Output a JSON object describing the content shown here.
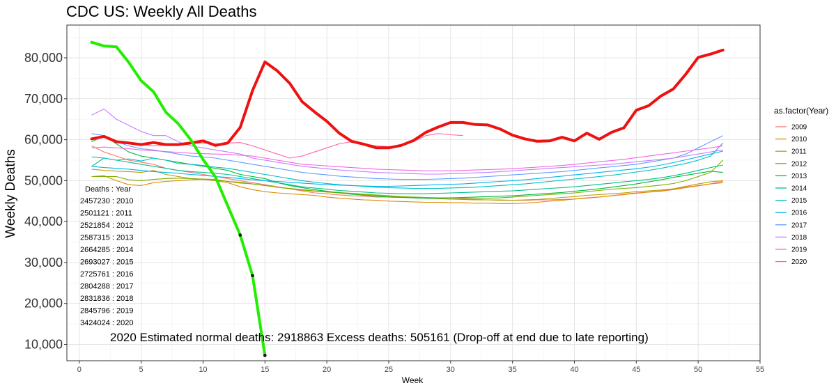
{
  "chart_data": {
    "type": "line",
    "title": "CDC US: Weekly All Deaths",
    "xlabel": "Week",
    "ylabel": "Weekly Deaths",
    "xlim": [
      -1,
      55
    ],
    "ylim": [
      6000,
      88000
    ],
    "x_ticks": [
      0,
      5,
      10,
      15,
      20,
      25,
      30,
      35,
      40,
      45,
      50,
      55
    ],
    "y_ticks": [
      10000,
      20000,
      30000,
      40000,
      50000,
      60000,
      70000,
      80000
    ],
    "y_tick_labels": [
      "10,000",
      "20,000",
      "30,000",
      "40,000",
      "50,000",
      "60,000",
      "70,000",
      "80,000"
    ],
    "grid": true,
    "legend": {
      "title": "as.factor(Year)",
      "position": "right",
      "entries": [
        "2009",
        "2010",
        "2011",
        "2012",
        "2013",
        "2014",
        "2015",
        "2016",
        "2017",
        "2018",
        "2019",
        "2020"
      ]
    },
    "series": [
      {
        "name": "2009",
        "color": "#F8766D",
        "x_start": 1,
        "values": [
          58500,
          57000,
          56000,
          55000,
          54500,
          54000,
          53000,
          52500,
          52000,
          51500,
          51000,
          50500,
          50000,
          49500,
          49000,
          48500,
          48000,
          47500,
          47000,
          46800,
          46500,
          46300,
          46200,
          46000,
          46000,
          45900,
          45800,
          45700,
          45600,
          45500,
          45500,
          45400,
          45300,
          45300,
          45200,
          45200,
          45300,
          45300,
          45400,
          45500,
          45700,
          46000,
          46300,
          46700,
          47000,
          47200,
          47400,
          47800,
          48300,
          48700,
          49200,
          49800
        ]
      },
      {
        "name": "2010",
        "color": "#DE8C00",
        "x_start": 1,
        "values": [
          51000,
          51200,
          50000,
          49000,
          48800,
          49500,
          49800,
          50000,
          50200,
          50300,
          50000,
          49500,
          48500,
          47800,
          47300,
          47000,
          46800,
          46600,
          46400,
          46000,
          45700,
          45500,
          45300,
          45200,
          45000,
          44900,
          44800,
          44700,
          44700,
          44600,
          44600,
          44500,
          44500,
          44400,
          44400,
          44500,
          44700,
          45000,
          45200,
          45500,
          45800,
          46000,
          46300,
          46600,
          46900,
          47200,
          47500,
          47900,
          48400,
          48800,
          49200,
          49500
        ]
      },
      {
        "name": "2011",
        "color": "#B79F00",
        "x_start": 1,
        "values": [
          52800,
          52500,
          52300,
          52200,
          52000,
          52500,
          51500,
          51000,
          50500,
          50400,
          50300,
          49800,
          49400,
          49200,
          48800,
          48400,
          48000,
          47700,
          47400,
          47200,
          47000,
          46800,
          46600,
          46400,
          46200,
          46000,
          45800,
          45700,
          45600,
          45500,
          45400,
          45300,
          45300,
          45200,
          45200,
          45300,
          45400,
          45600,
          45900,
          46100,
          46400,
          46600,
          46800,
          47000,
          47300,
          47500,
          47700,
          48000,
          48600,
          49200,
          49700,
          50000
        ]
      },
      {
        "name": "2012",
        "color": "#7CAE00",
        "x_start": 1,
        "values": [
          51000,
          51000,
          51000,
          50200,
          50000,
          50300,
          50500,
          50600,
          50500,
          50300,
          50100,
          49800,
          49600,
          49200,
          48800,
          48400,
          48100,
          47800,
          47500,
          47300,
          47100,
          46900,
          46700,
          46500,
          46300,
          46100,
          46000,
          45900,
          45800,
          45800,
          45700,
          45700,
          45700,
          45800,
          46000,
          46200,
          46400,
          46600,
          46800,
          47000,
          47300,
          47600,
          47900,
          48100,
          48300,
          48600,
          48900,
          49300,
          50000,
          51000,
          52000,
          55000
        ]
      },
      {
        "name": "2013",
        "color": "#00BA38",
        "x_start": 1,
        "values": [
          59500,
          61000,
          59000,
          57000,
          56000,
          55500,
          55000,
          54500,
          54000,
          53500,
          53000,
          52500,
          51500,
          51000,
          50500,
          49500,
          48800,
          48300,
          47800,
          47400,
          47000,
          46700,
          46400,
          46200,
          46000,
          45900,
          45800,
          45700,
          45700,
          45800,
          45900,
          46000,
          46100,
          46200,
          46300,
          46500,
          46700,
          46900,
          47100,
          47400,
          47700,
          48000,
          48400,
          48800,
          49200,
          49700,
          50200,
          50800,
          51300,
          51800,
          52300,
          52000
        ]
      },
      {
        "name": "2014",
        "color": "#00C08B",
        "x_start": 1,
        "values": [
          53500,
          55500,
          55000,
          54500,
          54000,
          53500,
          53000,
          52500,
          52200,
          52000,
          51800,
          51500,
          51000,
          50500,
          50000,
          49500,
          49000,
          48500,
          48200,
          47900,
          47600,
          47400,
          47200,
          47000,
          46900,
          46800,
          46800,
          46800,
          46900,
          47000,
          47100,
          47200,
          47300,
          47400,
          47500,
          47700,
          47900,
          48100,
          48300,
          48500,
          48800,
          49100,
          49400,
          49700,
          50000,
          50300,
          50700,
          51200,
          51800,
          52500,
          53200,
          53800
        ]
      },
      {
        "name": "2015",
        "color": "#00BFC4",
        "x_start": 1,
        "values": [
          55800,
          55500,
          55000,
          55300,
          54800,
          55500,
          55000,
          54200,
          54000,
          53700,
          53300,
          53000,
          52500,
          52000,
          51500,
          51000,
          50500,
          50000,
          49600,
          49300,
          49000,
          48800,
          48600,
          48400,
          48300,
          48200,
          48100,
          48100,
          48100,
          48200,
          48300,
          48400,
          48600,
          48800,
          49000,
          49200,
          49500,
          49800,
          50100,
          50400,
          50700,
          51000,
          51300,
          51700,
          52100,
          52500,
          53000,
          53600,
          54200,
          55000,
          56000,
          59200
        ]
      },
      {
        "name": "2016",
        "color": "#00B4F0",
        "x_start": 1,
        "values": [
          53500,
          53200,
          53000,
          52800,
          52500,
          52200,
          52000,
          51800,
          51500,
          51300,
          51000,
          50800,
          50500,
          50200,
          50000,
          49800,
          49600,
          49400,
          49200,
          49000,
          48900,
          48800,
          48700,
          48600,
          48600,
          48700,
          48800,
          48900,
          49000,
          49100,
          49200,
          49400,
          49600,
          49800,
          50000,
          50200,
          50500,
          50800,
          51100,
          51400,
          51700,
          52000,
          52300,
          52600,
          52900,
          53300,
          53800,
          54400,
          55100,
          55800,
          56500,
          57200
        ]
      },
      {
        "name": "2017",
        "color": "#619CFF",
        "x_start": 1,
        "values": [
          61500,
          61000,
          59500,
          58500,
          57800,
          57500,
          57000,
          56500,
          56000,
          55800,
          55500,
          55000,
          54500,
          54000,
          53500,
          53000,
          52500,
          52000,
          51700,
          51400,
          51100,
          50900,
          50700,
          50500,
          50400,
          50300,
          50300,
          50300,
          50400,
          50500,
          50600,
          50800,
          51000,
          51200,
          51400,
          51600,
          51800,
          52000,
          52200,
          52500,
          52800,
          53100,
          53400,
          53700,
          54000,
          54500,
          55000,
          55500,
          56500,
          58000,
          59500,
          61000
        ]
      },
      {
        "name": "2018",
        "color": "#C77CFF",
        "x_start": 1,
        "values": [
          66000,
          67500,
          65000,
          63500,
          62000,
          61000,
          61000,
          59500,
          58500,
          58000,
          57500,
          57000,
          56500,
          55500,
          55000,
          54500,
          54000,
          53500,
          53200,
          52900,
          52600,
          52400,
          52200,
          52000,
          51900,
          51800,
          51700,
          51600,
          51600,
          51700,
          51800,
          51900,
          52000,
          52200,
          52400,
          52600,
          52800,
          53000,
          53200,
          53400,
          53600,
          53800,
          54000,
          54300,
          54600,
          54900,
          55200,
          55500,
          56000,
          56500,
          57000,
          57500
        ]
      },
      {
        "name": "2019",
        "color": "#F564E3",
        "x_start": 1,
        "values": [
          58000,
          58200,
          58000,
          57800,
          57500,
          57300,
          57100,
          56900,
          56700,
          56600,
          56500,
          56400,
          56200,
          56000,
          55500,
          55000,
          54500,
          54000,
          53800,
          53600,
          53400,
          53200,
          53000,
          52800,
          52700,
          52600,
          52500,
          52400,
          52400,
          52400,
          52500,
          52600,
          52700,
          52800,
          52900,
          53100,
          53300,
          53500,
          53700,
          54000,
          54300,
          54600,
          54900,
          55200,
          55600,
          56000,
          56400,
          56800,
          57200,
          57600,
          58000,
          58500
        ]
      },
      {
        "name": "2020",
        "color": "#FF64B0",
        "x_start": 1,
        "values": [
          60200,
          60800,
          59500,
          59200,
          58800,
          58500,
          58600,
          58800,
          59000,
          59200,
          59000,
          59200,
          59300,
          58500,
          57500,
          56500,
          55500,
          56000,
          57000,
          58000,
          59000,
          59500,
          59000,
          58500,
          58300,
          58600,
          59500,
          61000,
          61500,
          61200,
          61000
        ]
      }
    ],
    "highlight_series": [
      {
        "role": "actual-2020",
        "color": "#EE1111",
        "x_start": 1,
        "values": [
          60200,
          60800,
          59500,
          59200,
          58800,
          59300,
          58800,
          58800,
          59200,
          59700,
          58600,
          59200,
          63000,
          72000,
          79000,
          76800,
          73800,
          69300,
          66800,
          64500,
          61600,
          59600,
          58900,
          58000,
          58000,
          58600,
          59800,
          61800,
          63100,
          64200,
          64200,
          63700,
          63600,
          62600,
          61100,
          60200,
          59600,
          59700,
          60600,
          59700,
          61600,
          60100,
          61800,
          62900,
          67200,
          68300,
          70700,
          72400,
          76000,
          80100,
          80900,
          81900
        ]
      },
      {
        "role": "last-year-reporting",
        "color": "#22EE00",
        "x_start": 1,
        "values": [
          83800,
          82900,
          82700,
          78900,
          74400,
          71700,
          66700,
          63900,
          60000,
          55200,
          50900,
          43800,
          36700,
          26800,
          7300
        ],
        "marked_points": [
          13,
          14,
          15
        ]
      }
    ],
    "annotations": {
      "totals_title": "Deaths : Year",
      "totals": [
        "2457230 : 2010",
        "2501121 : 2011",
        "2521854 : 2012",
        "2587315 : 2013",
        "2664285 : 2014",
        "2693027 : 2015",
        "2725761 : 2016",
        "2804288 : 2017",
        "2831836 : 2018",
        "2845796 : 2019",
        "3424024 : 2020"
      ],
      "note": "2020 Estimated normal deaths: 2918863  Excess deaths: 505161  (Drop-off at end due to late reporting)"
    }
  }
}
